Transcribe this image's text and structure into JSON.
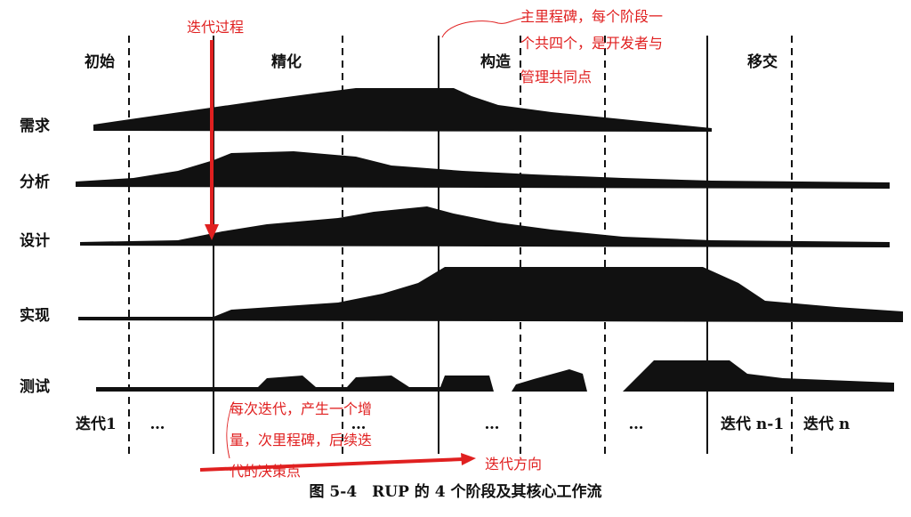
{
  "phases": [
    "初始",
    "精化",
    "构造",
    "移交"
  ],
  "workflows": [
    "需求",
    "分析",
    "设计",
    "实现",
    "测试"
  ],
  "iterations": [
    "迭代1",
    "…",
    "…",
    "…",
    "…",
    "迭代 n-1",
    "迭代 n"
  ],
  "caption": "图 5-4　RUP 的 4 个阶段及其核心工作流",
  "annotations": {
    "iteration_process": "迭代过程",
    "main_milestone": [
      "主里程碑，每个阶段一",
      "个共四个，是开发者与",
      "管理共同点"
    ],
    "minor_milestone": [
      "每次迭代，产生一个增",
      "量，次里程碑，后续迭",
      "代的决策点"
    ],
    "iteration_direction": "迭代方向"
  }
}
